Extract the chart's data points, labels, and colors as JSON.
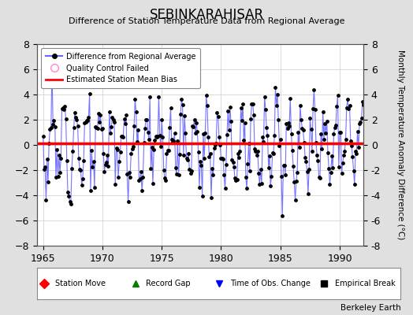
{
  "title": "SEBINKARAHISAR",
  "subtitle": "Difference of Station Temperature Data from Regional Average",
  "ylabel": "Monthly Temperature Anomaly Difference (°C)",
  "xlabel_years": [
    1965,
    1970,
    1975,
    1980,
    1985,
    1990
  ],
  "year_start": 1964.5,
  "year_end": 1992.0,
  "ylim": [
    -8,
    8
  ],
  "yticks": [
    -8,
    -6,
    -4,
    -2,
    0,
    2,
    4,
    6,
    8
  ],
  "bias_level": 0.15,
  "line_color": "#6666ff",
  "dot_color": "#000000",
  "bias_color": "#ff0000",
  "plot_bg_color": "#ffffff",
  "fig_bg_color": "#e0e0e0",
  "watermark": "Berkeley Earth",
  "seed": 12
}
